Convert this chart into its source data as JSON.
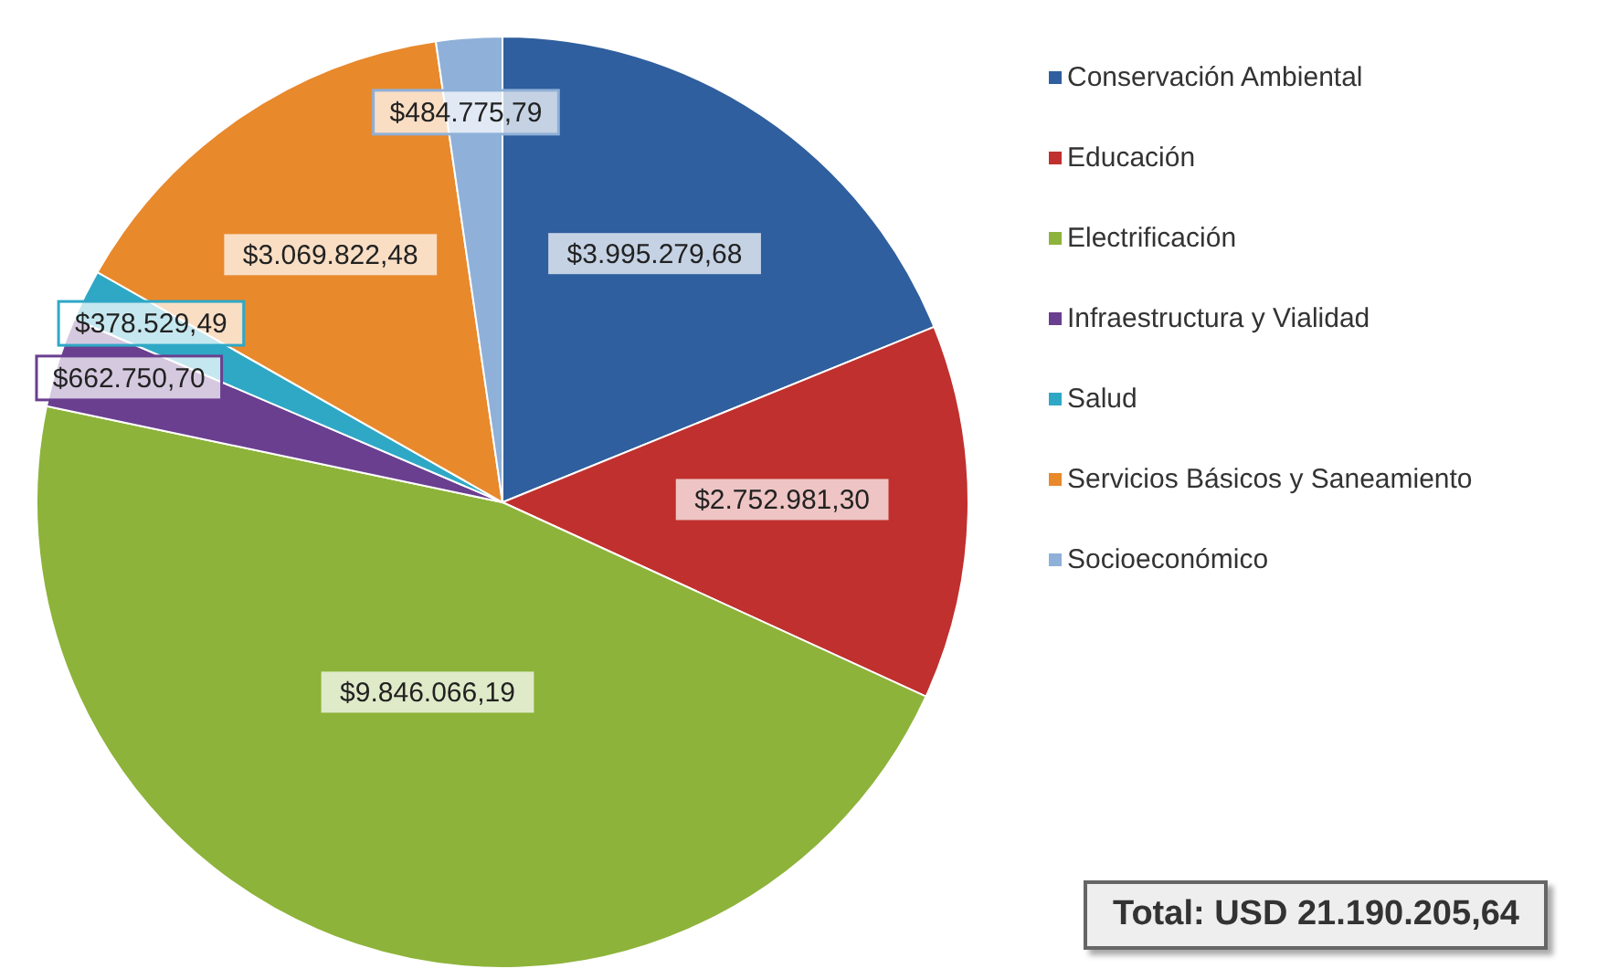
{
  "chart_data": {
    "type": "pie",
    "categories": [
      "Conservación Ambiental",
      "Educación",
      "Electrificación",
      "Infraestructura y Vialidad",
      "Salud",
      "Servicios Básicos y Saneamiento",
      "Socioeconómico"
    ],
    "values": [
      3995279.68,
      2752981.3,
      9846066.19,
      662750.7,
      378529.49,
      3069822.48,
      484775.79
    ],
    "colors": [
      "#2f5f9e",
      "#c0302e",
      "#8db33a",
      "#6a3f8f",
      "#2fa8c6",
      "#e8892c",
      "#8fb0d8"
    ],
    "value_labels": [
      "$3.995.279,68",
      "$2.752.981,30",
      "$9.846.066,19",
      "$662.750,70",
      "$378.529,49",
      "$3.069.822,48",
      "$484.775,79"
    ],
    "legend": "right",
    "annotations": [
      "Total: USD 21.190.205,64"
    ]
  }
}
